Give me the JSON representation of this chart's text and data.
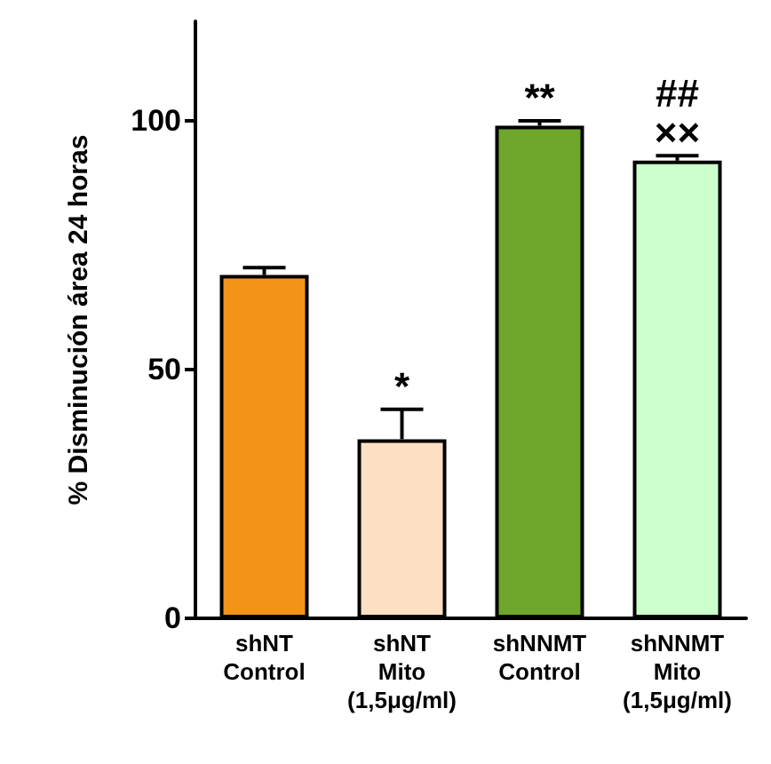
{
  "chart_data": {
    "type": "bar",
    "ylabel": "% Disminución área 24 horas",
    "categories": [
      "shNT\nControl",
      "shNT\nMito\n(1,5μg/ml)",
      "shNNMT\nControl",
      "shNNMT\nMito\n(1,5μg/ml)"
    ],
    "values": [
      69,
      36,
      99,
      92
    ],
    "colors": [
      "#f39419",
      "#fde0c3",
      "#6ea52b",
      "#ccffcc"
    ],
    "errors": [
      1.5,
      6,
      1,
      1
    ],
    "ylim": [
      0,
      120
    ],
    "yticks": [
      0,
      50,
      100
    ],
    "grid": false,
    "annotations": [
      {
        "text": "*",
        "x": "shNT\nMito\n(1,5μg/ml)",
        "y": 42
      },
      {
        "text": "**",
        "x": "shNNMT\nControl",
        "y": 100
      },
      {
        "text": "××",
        "x": "shNNMT\nMito\n(1,5μg/ml)",
        "y": 93
      },
      {
        "text": "##",
        "x": "shNNMT\nMito\n(1,5μg/ml)",
        "y": 93
      }
    ]
  }
}
